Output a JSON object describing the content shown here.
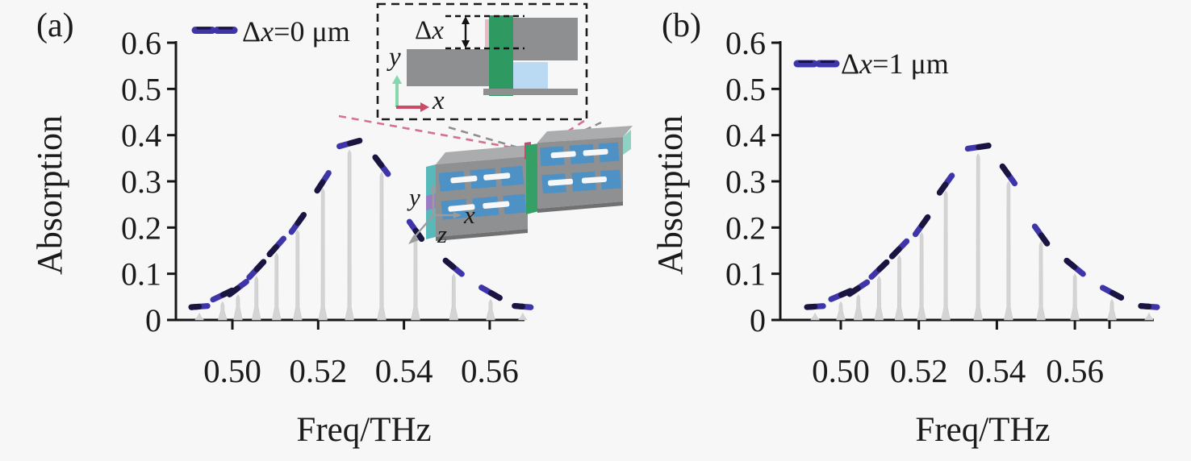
{
  "figure": {
    "background": "#f7f7f7",
    "description": "Absorption spectra comb with dashed envelope for two lateral displacements"
  },
  "panels": [
    {
      "label": "(a)"
    },
    {
      "label": "(b)"
    }
  ],
  "chart_data": [
    {
      "panel": "a",
      "type": "bar",
      "title": "",
      "xlabel": "Freq/THz",
      "ylabel": "Absorption",
      "xlim": [
        0.487,
        0.568
      ],
      "ylim": [
        0,
        0.6
      ],
      "xticks": [
        0.5,
        0.52,
        0.54,
        0.56
      ],
      "xtick_labels": [
        "0.50",
        "0.52",
        "0.54",
        "0.56"
      ],
      "yticks": [
        0,
        0.1,
        0.2,
        0.3,
        0.4,
        0.5,
        0.6
      ],
      "ytick_labels": [
        "0",
        "0.1",
        "0.2",
        "0.3",
        "0.4",
        "0.5",
        "0.6"
      ],
      "grid": false,
      "legend_position": "top-left",
      "legend": {
        "text": "Δx=0 μm",
        "prefix": "Δ",
        "variable": "x",
        "suffix": "=0 μm"
      },
      "series": [
        {
          "name": "comb spikes",
          "style": "gray-spike",
          "freq_thz": [
            0.4923,
            0.4977,
            0.5013,
            0.5056,
            0.5103,
            0.5152,
            0.5211,
            0.5273,
            0.5348,
            0.5427,
            0.5516,
            0.5602,
            0.5677
          ],
          "absorption": [
            0.015,
            0.04,
            0.055,
            0.095,
            0.145,
            0.195,
            0.285,
            0.368,
            0.32,
            0.18,
            0.1,
            0.045,
            0.015
          ]
        },
        {
          "name": "envelope",
          "style": "dashed",
          "color": "#3e35a8",
          "peak_freq_thz": 0.527,
          "peak_absorption": 0.37
        }
      ]
    },
    {
      "panel": "b",
      "type": "bar",
      "title": "",
      "xlabel": "Freq/THz",
      "ylabel": "Absorption",
      "xlim": [
        0.4845,
        0.58
      ],
      "ylim": [
        0,
        0.6
      ],
      "xticks": [
        0.5,
        0.52,
        0.54,
        0.56
      ],
      "xtick_labels": [
        "0.50",
        "0.52",
        "0.54",
        "0.56"
      ],
      "yticks": [
        0,
        0.1,
        0.2,
        0.3,
        0.4,
        0.5,
        0.6
      ],
      "ytick_labels": [
        "0",
        "0.1",
        "0.2",
        "0.3",
        "0.4",
        "0.5",
        "0.6"
      ],
      "grid": false,
      "legend_position": "top-left",
      "legend": {
        "text": "Δx=1 μm",
        "prefix": "Δ",
        "variable": "x",
        "suffix": "=1 μm"
      },
      "series": [
        {
          "name": "comb spikes",
          "style": "gray-spike",
          "freq_thz": [
            0.4934,
            0.5,
            0.5045,
            0.5098,
            0.515,
            0.5207,
            0.5269,
            0.5352,
            0.543,
            0.5513,
            0.56,
            0.5695,
            0.579
          ],
          "absorption": [
            0.015,
            0.04,
            0.055,
            0.095,
            0.14,
            0.19,
            0.28,
            0.36,
            0.3,
            0.17,
            0.1,
            0.045,
            0.015
          ]
        },
        {
          "name": "envelope",
          "style": "dashed",
          "color": "#3e35a8",
          "peak_freq_thz": 0.535,
          "peak_absorption": 0.36
        }
      ]
    }
  ],
  "inset": {
    "label_prefix": "Δ",
    "label_variable": "x",
    "axis_x": "x",
    "axis_y": "y"
  },
  "device_axes": {
    "x": "x",
    "y": "y",
    "z": "z"
  },
  "colors": {
    "envelope": "#3e35a8",
    "envelope_dark": "#191540",
    "spike": "#d4d4d4",
    "axis": "#161616",
    "inset_gray": "#8d8f91",
    "green_bar": "#2e9a61",
    "light_blue": "#bad9f2",
    "slab_gray": "#8e9092",
    "slab_top": "#aaacad",
    "blue_patch": "#4e91c5",
    "leader_pink": "#d4738f",
    "leader_gray": "#8e8e8e",
    "inset_axis_green": "#86d6ae",
    "inset_axis_red": "#cb4a66"
  }
}
